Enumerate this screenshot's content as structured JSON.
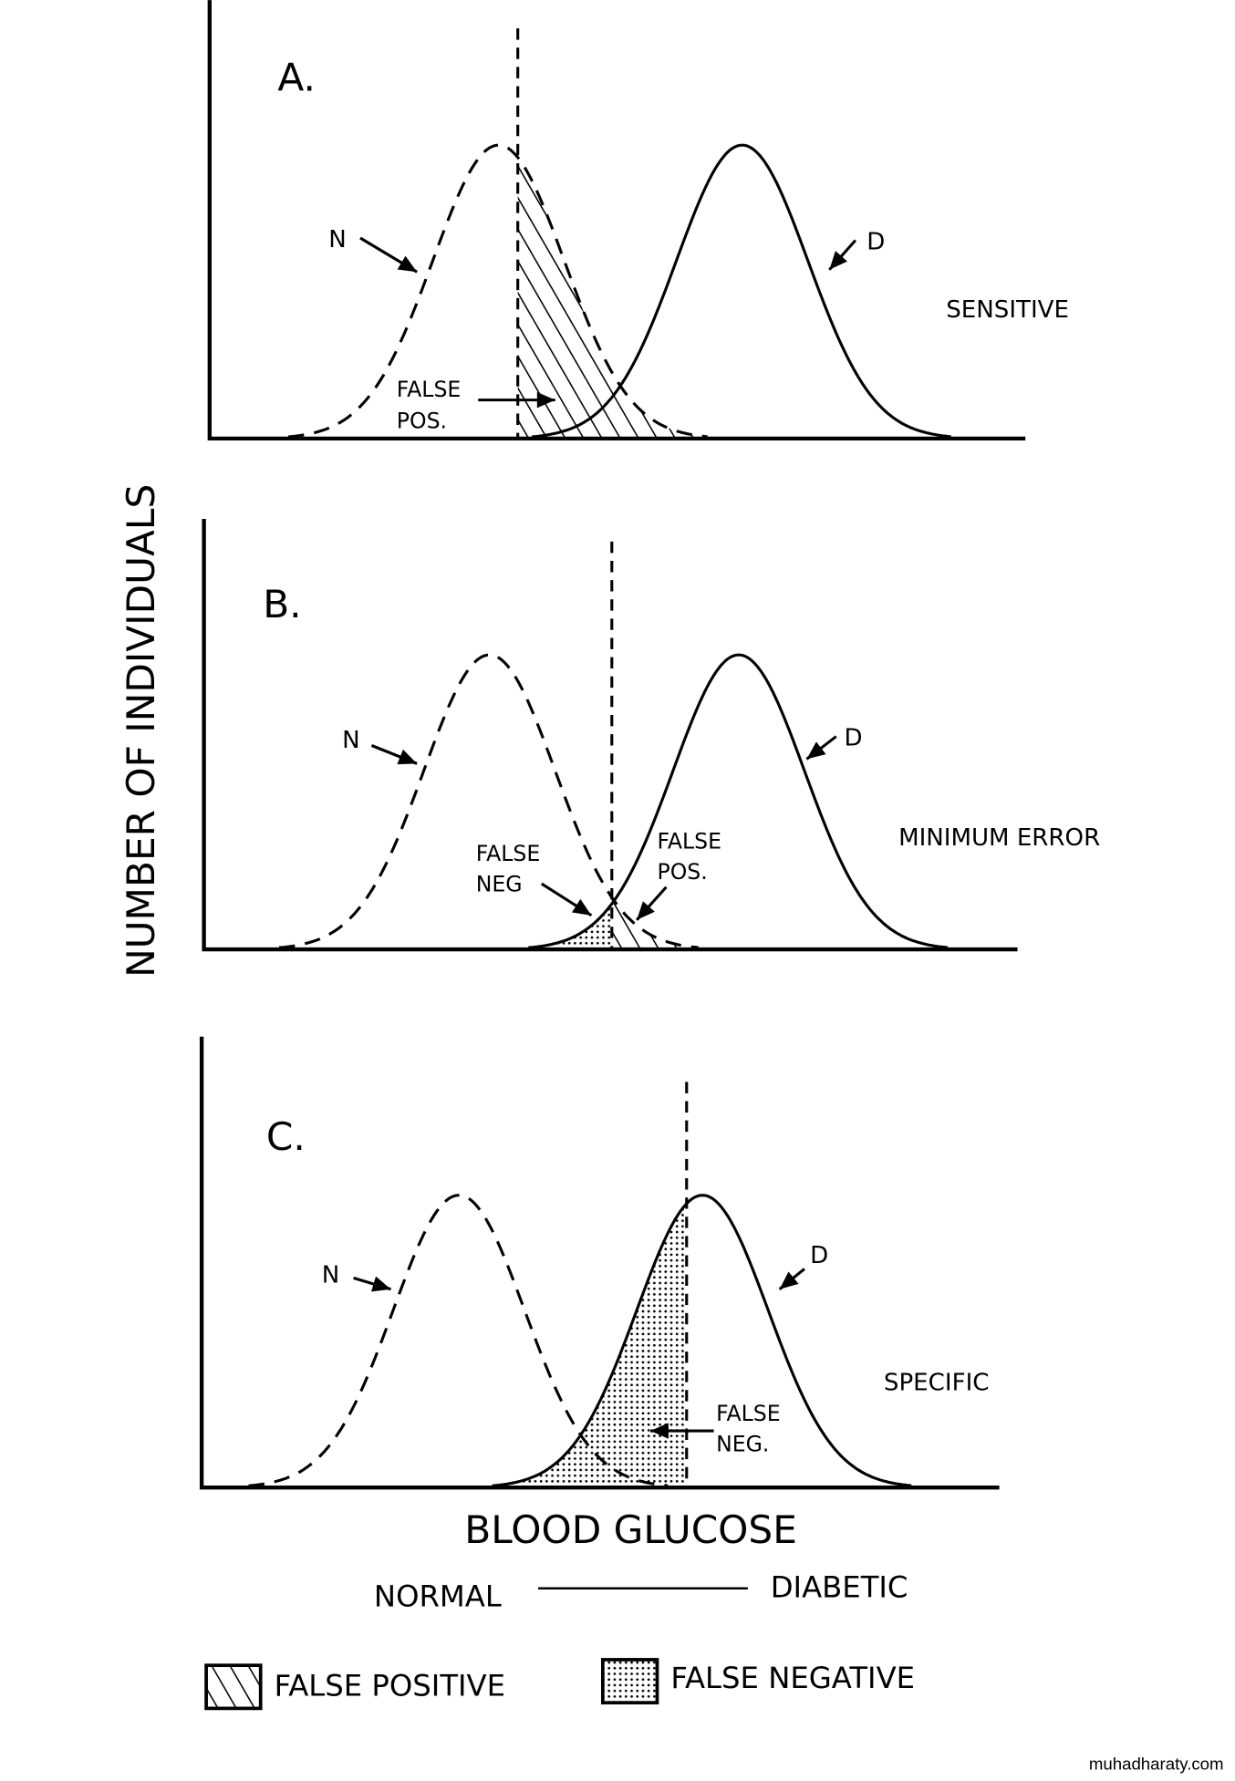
{
  "y_axis_label": "NUMBER OF INDIVIDUALS",
  "x_axis_label": "BLOOD GLUCOSE",
  "scale": {
    "left": "NORMAL",
    "right": "DIABETIC"
  },
  "curve_labels": {
    "normal": "N",
    "diabetic": "D"
  },
  "panels": [
    {
      "letter": "A.",
      "title": "SENSITIVE",
      "annotations": [
        {
          "line1": "FALSE",
          "line2": "POS."
        }
      ]
    },
    {
      "letter": "B.",
      "title": "MINIMUM ERROR",
      "annotations": [
        {
          "line1": "FALSE",
          "line2": "NEG"
        },
        {
          "line1": "FALSE",
          "line2": "POS."
        }
      ]
    },
    {
      "letter": "C.",
      "title": "SPECIFIC",
      "annotations": [
        {
          "line1": "FALSE",
          "line2": "NEG."
        }
      ]
    }
  ],
  "legend": [
    {
      "label": "FALSE POSITIVE",
      "pattern": "hatched"
    },
    {
      "label": "FALSE NEGATIVE",
      "pattern": "dotted"
    }
  ],
  "watermark": "muhadharaty.com"
}
